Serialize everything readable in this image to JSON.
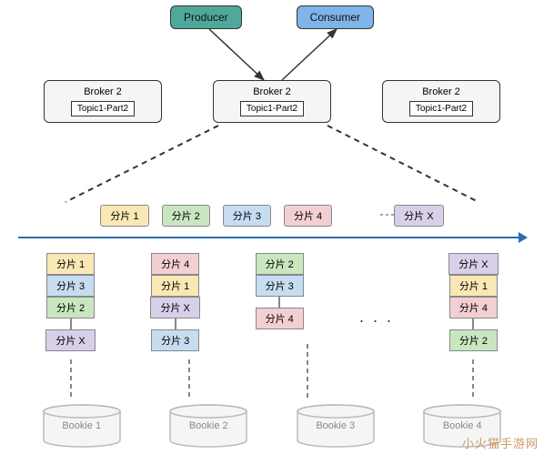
{
  "type": "flowchart",
  "colors": {
    "producer_bg": "#4fa99a",
    "consumer_bg": "#7eb4e6",
    "broker_bg": "#f5f5f5",
    "axis": "#2b6cb0",
    "yellow": "#f9e8b5",
    "green": "#c9e6c0",
    "blue": "#c6dcf0",
    "pink": "#f3cfd2",
    "purple": "#d8cfe8",
    "bookie_stroke": "#bbbbbb",
    "text_gray": "#888888"
  },
  "fontsize": {
    "node": 12,
    "broker": 11,
    "topic": 10,
    "shard": 11,
    "bookie": 11
  },
  "producer": {
    "label": "Producer"
  },
  "consumer": {
    "label": "Consumer"
  },
  "brokers": [
    {
      "label": "Broker 2",
      "topic": "Topic1-Part2"
    },
    {
      "label": "Broker 2",
      "topic": "Topic1-Part2"
    },
    {
      "label": "Broker 2",
      "topic": "Topic1-Part2"
    }
  ],
  "shards_row": [
    {
      "label": "分片 1",
      "color": "#f9e8b5"
    },
    {
      "label": "分片 2",
      "color": "#c9e6c0"
    },
    {
      "label": "分片 3",
      "color": "#c6dcf0"
    },
    {
      "label": "分片 4",
      "color": "#f3cfd2"
    },
    {
      "label": "分片 X",
      "color": "#d8cfe8"
    }
  ],
  "columns": [
    {
      "stack1": [
        {
          "label": "分片 1",
          "color": "#f9e8b5"
        },
        {
          "label": "分片 3",
          "color": "#c6dcf0"
        },
        {
          "label": "分片 2",
          "color": "#c9e6c0"
        }
      ],
      "stack2": [
        {
          "label": "分片 X",
          "color": "#d8cfe8"
        }
      ]
    },
    {
      "stack1": [
        {
          "label": "分片 4",
          "color": "#f3cfd2"
        },
        {
          "label": "分片 1",
          "color": "#f9e8b5"
        },
        {
          "label": "分片 X",
          "color": "#d8cfe8"
        }
      ],
      "stack2": [
        {
          "label": "分片 3",
          "color": "#c6dcf0"
        }
      ]
    },
    {
      "stack1": [
        {
          "label": "分片 2",
          "color": "#c9e6c0"
        },
        {
          "label": "分片 3",
          "color": "#c6dcf0"
        }
      ],
      "stack2": [
        {
          "label": "分片 4",
          "color": "#f3cfd2"
        }
      ]
    },
    {
      "stack1": [
        {
          "label": "分片 X",
          "color": "#d8cfe8"
        },
        {
          "label": "分片 1",
          "color": "#f9e8b5"
        },
        {
          "label": "分片 4",
          "color": "#f3cfd2"
        }
      ],
      "stack2": [
        {
          "label": "分片 2",
          "color": "#c9e6c0"
        }
      ]
    }
  ],
  "ellipsis": "· · ·",
  "bookies": [
    {
      "label": "Bookie 1"
    },
    {
      "label": "Bookie 2"
    },
    {
      "label": "Bookie 3"
    },
    {
      "label": "Bookie 4"
    }
  ],
  "watermark": "小火猫手游网"
}
